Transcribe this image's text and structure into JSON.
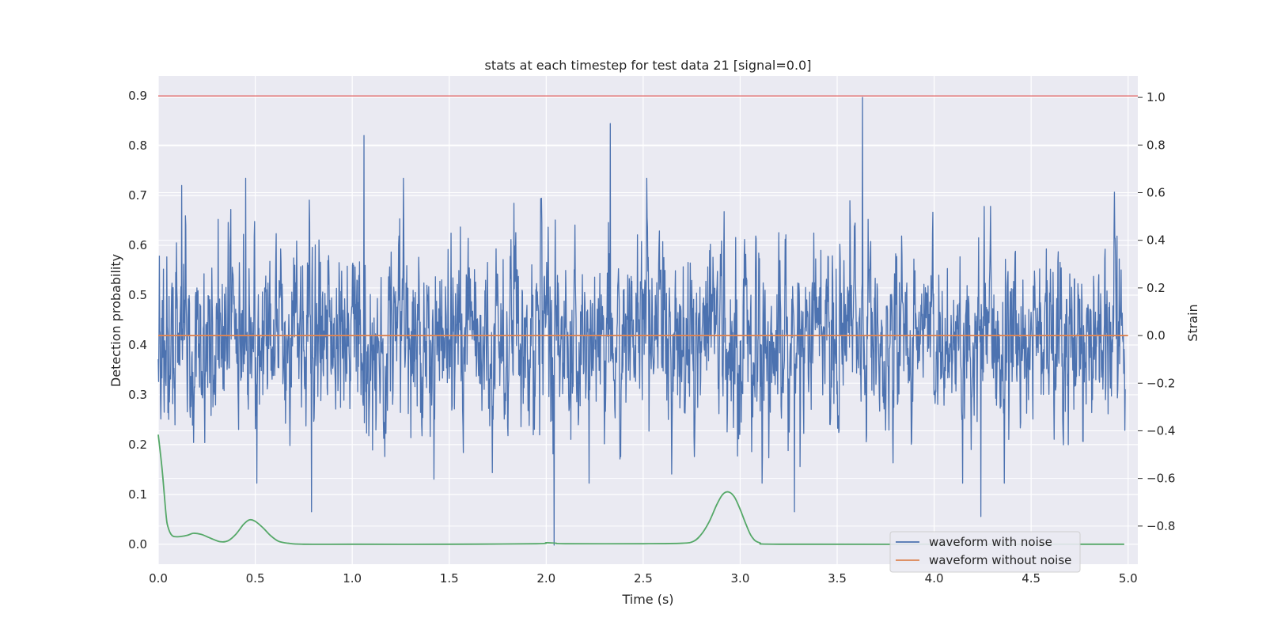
{
  "chart_data": {
    "type": "line",
    "title": "stats at each timestep for test data 21 [signal=0.0]",
    "xlabel": "Time (s)",
    "ylabel": "Detection probability",
    "y2label": "Strain",
    "xlim": [
      0.0,
      5.05
    ],
    "ylim": [
      -0.04,
      0.94
    ],
    "y2lim": [
      -0.96,
      1.09
    ],
    "xticks": [
      "0.0",
      "0.5",
      "1.0",
      "1.5",
      "2.0",
      "2.5",
      "3.0",
      "3.5",
      "4.0",
      "4.5",
      "5.0"
    ],
    "yticks": [
      "0.0",
      "0.1",
      "0.2",
      "0.3",
      "0.4",
      "0.5",
      "0.6",
      "0.7",
      "0.8",
      "0.9"
    ],
    "y2ticks": [
      "−0.8",
      "−0.6",
      "−0.4",
      "−0.2",
      "0.0",
      "0.2",
      "0.4",
      "0.6",
      "0.8",
      "1.0"
    ],
    "grid": true,
    "legend_position": "lower-right",
    "threshold": {
      "y": 0.9,
      "color": "#dd4444"
    },
    "series": [
      {
        "name": "waveform with noise",
        "axis": "right",
        "color": "#4c72b0",
        "note_values": "dense noise on the Strain axis, mostly within [-0.4, 0.45], sampled at 2048 Hz",
        "peaks": [
          {
            "x": 0.12,
            "y": 0.63
          },
          {
            "x": 0.45,
            "y": 0.66
          },
          {
            "x": 1.06,
            "y": 0.84
          },
          {
            "x": 2.33,
            "y": 0.89
          },
          {
            "x": 3.63,
            "y": 1.0
          },
          {
            "x": 2.04,
            "y": -0.88
          },
          {
            "x": 4.24,
            "y": -0.76
          },
          {
            "x": 0.79,
            "y": -0.74
          },
          {
            "x": 3.28,
            "y": -0.74
          }
        ]
      },
      {
        "name": "waveform without noise",
        "axis": "right",
        "color": "#dd8452",
        "x": [
          0.0,
          5.0
        ],
        "y": [
          0.0,
          0.0
        ]
      },
      {
        "name": "",
        "axis": "left",
        "color": "#55a868",
        "x": [
          0.0,
          0.02,
          0.04,
          0.05,
          0.07,
          0.1,
          0.15,
          0.18,
          0.22,
          0.27,
          0.32,
          0.36,
          0.4,
          0.44,
          0.47,
          0.5,
          0.54,
          0.58,
          0.62,
          0.67,
          0.75,
          1.0,
          1.5,
          1.95,
          2.0,
          2.05,
          2.1,
          2.5,
          2.7,
          2.76,
          2.8,
          2.84,
          2.88,
          2.91,
          2.94,
          2.97,
          3.0,
          3.03,
          3.06,
          3.1,
          3.2,
          4.0,
          4.98
        ],
        "y": [
          0.22,
          0.15,
          0.06,
          0.035,
          0.018,
          0.015,
          0.018,
          0.022,
          0.02,
          0.012,
          0.005,
          0.007,
          0.02,
          0.04,
          0.049,
          0.046,
          0.033,
          0.017,
          0.006,
          0.002,
          0.0,
          0.0,
          0.0,
          0.001,
          0.003,
          0.002,
          0.001,
          0.001,
          0.002,
          0.006,
          0.02,
          0.045,
          0.08,
          0.1,
          0.105,
          0.095,
          0.07,
          0.04,
          0.015,
          0.003,
          0.0,
          0.0,
          0.0
        ]
      }
    ]
  }
}
